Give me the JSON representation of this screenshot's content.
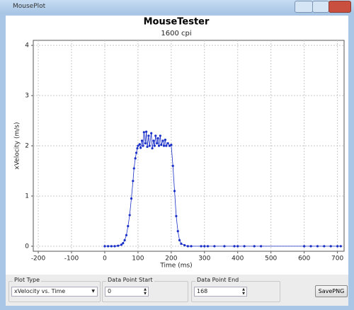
{
  "window": {
    "title": "MousePlot"
  },
  "chart_data": {
    "type": "line",
    "title": "MouseTester",
    "subtitle": "1600 cpi",
    "x_label": "Time (ms)",
    "y_label": "xVelocity (m/s)",
    "x": [
      0,
      10,
      20,
      30,
      40,
      50,
      55,
      60,
      65,
      70,
      75,
      80,
      85,
      88,
      92,
      95,
      98,
      100,
      105,
      108,
      112,
      115,
      118,
      122,
      125,
      128,
      132,
      135,
      140,
      143,
      147,
      150,
      153,
      157,
      160,
      163,
      167,
      170,
      175,
      178,
      182,
      185,
      190,
      195,
      200,
      205,
      210,
      215,
      220,
      225,
      230,
      240,
      250,
      260,
      290,
      300,
      310,
      330,
      360,
      390,
      400,
      420,
      450,
      470,
      600,
      620,
      640,
      660,
      680,
      700,
      710
    ],
    "values": [
      0,
      0,
      0,
      0,
      0.01,
      0.03,
      0.06,
      0.12,
      0.22,
      0.4,
      0.62,
      0.95,
      1.3,
      1.55,
      1.75,
      1.86,
      1.95,
      2.0,
      2.03,
      1.96,
      2.1,
      2.0,
      2.27,
      2.05,
      2.28,
      1.98,
      2.2,
      2.0,
      2.25,
      1.95,
      2.1,
      2.0,
      2.2,
      2.05,
      2.15,
      2.0,
      2.2,
      2.02,
      2.1,
      2.0,
      2.12,
      2.0,
      2.05,
      2.0,
      2.02,
      1.6,
      1.1,
      0.6,
      0.3,
      0.12,
      0.05,
      0.02,
      0,
      0,
      0,
      0,
      0,
      0,
      0,
      0,
      0,
      0,
      0,
      0,
      0,
      0,
      0,
      0,
      0,
      0,
      0
    ],
    "color": "#1a2fc8",
    "markers": true,
    "xlim": [
      -215,
      720
    ],
    "ylim": [
      -0.1,
      4.1
    ],
    "xticks": [
      -200,
      -100,
      0,
      100,
      200,
      300,
      400,
      500,
      600,
      700
    ],
    "yticks": [
      0,
      1,
      2,
      3,
      4
    ],
    "grid": true
  },
  "controls": {
    "plot_type": {
      "label": "Plot Type",
      "value": "xVelocity vs. Time"
    },
    "start": {
      "label": "Data Point Start",
      "value": 0
    },
    "end": {
      "label": "Data Point End",
      "value": 168
    },
    "button": "SavePNG"
  }
}
